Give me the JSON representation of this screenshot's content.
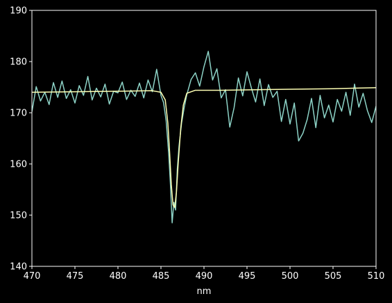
{
  "colors": {
    "background": "#000000",
    "axes": "#ffffff",
    "spectrum_line": "#8dd3c7",
    "fit_line": "#feffb3"
  },
  "chart_data": {
    "type": "line",
    "title": "",
    "xlabel": "nm",
    "ylabel": "",
    "xlim": [
      470,
      510
    ],
    "ylim": [
      140,
      190
    ],
    "grid": false,
    "xticks": [
      470,
      475,
      480,
      485,
      490,
      495,
      500,
      505,
      510
    ],
    "yticks": [
      140,
      150,
      160,
      170,
      180,
      190
    ],
    "series": [
      {
        "color": "#8dd3c7",
        "x": [
          470.0,
          470.5,
          471.0,
          471.5,
          472.0,
          472.5,
          473.0,
          473.5,
          474.0,
          474.5,
          475.0,
          475.5,
          476.0,
          476.5,
          477.0,
          477.5,
          478.0,
          478.5,
          479.0,
          479.5,
          480.0,
          480.5,
          481.0,
          481.5,
          482.0,
          482.5,
          483.0,
          483.5,
          484.0,
          484.5,
          485.0,
          485.3,
          485.6,
          485.9,
          486.1,
          486.3,
          486.5,
          486.7,
          486.9,
          487.1,
          487.4,
          487.7,
          488.0,
          488.5,
          489.0,
          489.5,
          490.0,
          490.5,
          491.0,
          491.5,
          492.0,
          492.5,
          493.0,
          493.5,
          494.0,
          494.5,
          495.0,
          495.5,
          496.0,
          496.5,
          497.0,
          497.5,
          498.0,
          498.5,
          499.0,
          499.5,
          500.0,
          500.5,
          501.0,
          501.5,
          502.0,
          502.5,
          503.0,
          503.5,
          504.0,
          504.5,
          505.0,
          505.5,
          506.0,
          506.5,
          507.0,
          507.5,
          508.0,
          508.5,
          509.0,
          509.5,
          510.0
        ],
        "y": [
          170.2,
          175.1,
          172.3,
          174.0,
          171.6,
          175.9,
          173.0,
          176.2,
          172.8,
          174.5,
          171.9,
          175.3,
          173.4,
          177.1,
          172.5,
          174.8,
          173.1,
          175.6,
          171.7,
          174.2,
          173.9,
          176.0,
          172.6,
          174.4,
          173.2,
          175.8,
          172.9,
          176.4,
          174.1,
          178.5,
          173.4,
          172.0,
          168.5,
          162.0,
          156.0,
          148.5,
          152.5,
          151.0,
          159.0,
          163.5,
          168.0,
          171.0,
          173.5,
          176.5,
          177.8,
          175.2,
          179.0,
          182.0,
          176.4,
          178.6,
          172.9,
          174.5,
          167.2,
          171.0,
          176.8,
          173.3,
          178.0,
          174.9,
          172.1,
          176.6,
          171.4,
          175.5,
          173.0,
          174.2,
          168.3,
          172.6,
          167.8,
          171.9,
          164.5,
          166.0,
          168.7,
          172.8,
          167.1,
          173.4,
          169.0,
          171.5,
          168.2,
          172.6,
          170.3,
          174.0,
          169.5,
          175.6,
          171.1,
          173.8,
          170.4,
          168.1,
          171.3
        ]
      },
      {
        "color": "#feffb3",
        "x": [
          470.0,
          475.0,
          480.0,
          484.0,
          485.0,
          485.5,
          485.8,
          486.0,
          486.2,
          486.4,
          486.6,
          486.8,
          487.0,
          487.3,
          487.6,
          488.0,
          489.0,
          492.0,
          500.0,
          505.0,
          510.0
        ],
        "y": [
          174.0,
          174.1,
          174.2,
          174.3,
          174.0,
          172.5,
          168.0,
          162.5,
          156.0,
          152.0,
          151.5,
          154.5,
          160.0,
          167.0,
          171.5,
          173.8,
          174.4,
          174.4,
          174.6,
          174.7,
          174.9
        ]
      }
    ]
  }
}
